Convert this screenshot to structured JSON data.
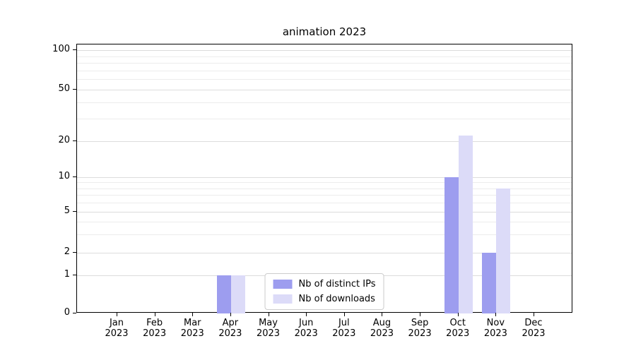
{
  "chart_data": {
    "type": "bar",
    "title": "animation 2023",
    "categories": [
      "Jan",
      "Feb",
      "Mar",
      "Apr",
      "May",
      "Jun",
      "Jul",
      "Aug",
      "Sep",
      "Oct",
      "Nov",
      "Dec"
    ],
    "x_tick_year": "2023",
    "series": [
      {
        "name": "Nb of distinct IPs",
        "color": "#9d9def",
        "values": [
          0,
          0,
          0,
          1,
          0,
          0,
          0,
          0,
          0,
          10,
          2,
          0
        ]
      },
      {
        "name": "Nb of downloads",
        "color": "#dcdbf8",
        "values": [
          0,
          0,
          0,
          1,
          0,
          0,
          0,
          0,
          0,
          22,
          8,
          0
        ]
      }
    ],
    "yticks": [
      0,
      1,
      2,
      5,
      10,
      20,
      50,
      100
    ],
    "minor_gridlines": [
      3,
      4,
      6,
      7,
      8,
      9,
      30,
      40,
      60,
      70,
      80,
      90
    ],
    "scale": "symlog",
    "ylim": [
      0,
      112
    ],
    "grid": true,
    "legend": {
      "position": "lower center inside"
    }
  }
}
